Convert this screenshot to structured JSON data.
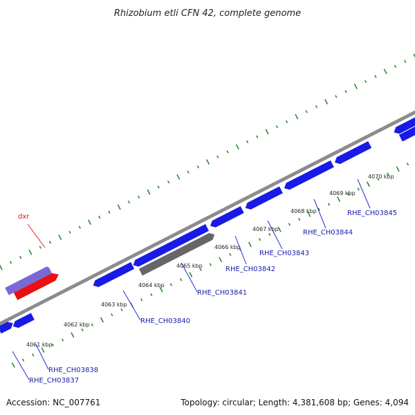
{
  "title": "Rhizobium etli CFN 42, complete genome",
  "footer": {
    "accession": "Accession: NC_007761",
    "summary": "Topology: circular; Length: 4,381,608 bp; Genes: 4,094"
  },
  "colors": {
    "backbone": "#8c8c8c",
    "tick": "#2a8a2a",
    "cds_forward": "#1a1ae6",
    "cds_reverse": "#1a1ae6",
    "pseudo": "#666666",
    "dxr_outer": "#7b68d8",
    "dxr_inner": "#e81010",
    "gene_label": "#1a1aa8",
    "feature_label": "#dd1111"
  },
  "kbp_labels": [
    "4061 kbp",
    "4062 kbp",
    "4063 kbp",
    "4064 kbp",
    "4065 kbp",
    "4066 kbp",
    "4067 kbp",
    "4068 kbp",
    "4069 kbp",
    "4070 kbp"
  ],
  "gene_labels": [
    "RHE_CH03837",
    "RHE_CH03838",
    "RHE_CH03840",
    "RHE_CH03841",
    "RHE_CH03842",
    "RHE_CH03843",
    "RHE_CH03844",
    "RHE_CH03845"
  ],
  "feature_label": "dxr"
}
